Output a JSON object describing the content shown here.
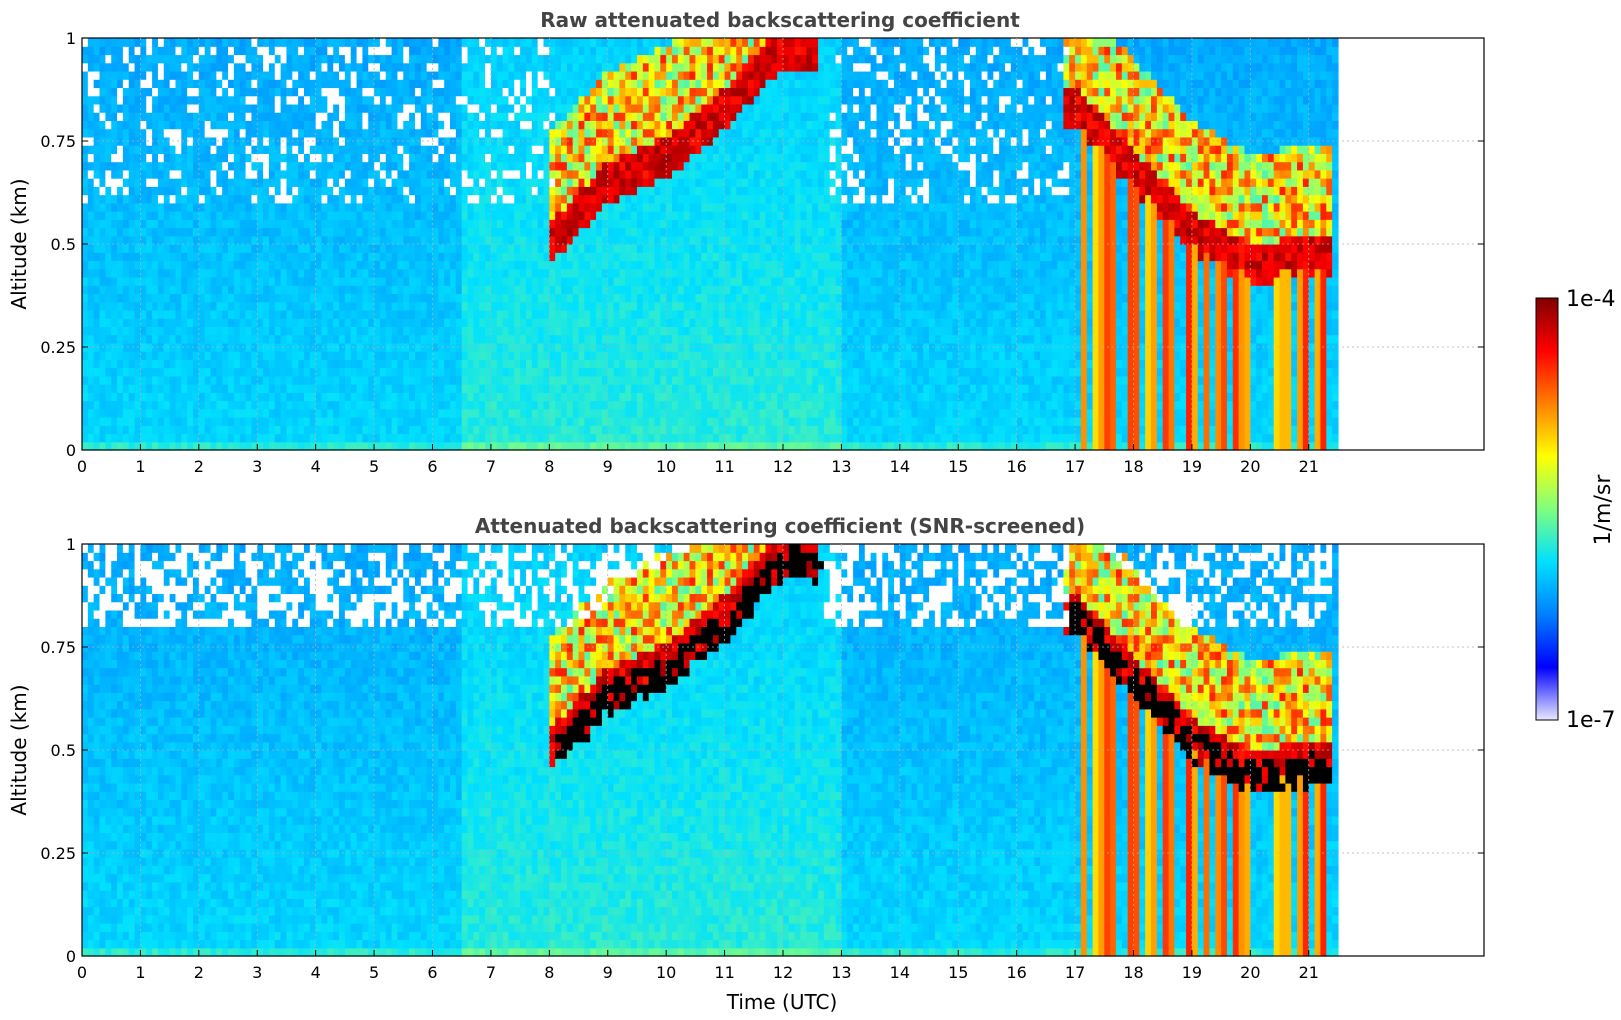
{
  "colors": {
    "panel_bg": "#ffffff",
    "grid": "#b0b0b0",
    "title": "#444444",
    "colormap": [
      "#e8e8ff",
      "#0000ff",
      "#0080ff",
      "#00e0ff",
      "#7fff7f",
      "#ffff00",
      "#ff8000",
      "#ff0000",
      "#800000"
    ]
  },
  "colorbar": {
    "label": "1/m/sr",
    "max_label": "1e-4",
    "min_label": "1e-7",
    "scale": "log",
    "range": [
      1e-07,
      0.0001
    ]
  },
  "xaxis_label": "Time (UTC)",
  "chart_data": [
    {
      "type": "heatmap",
      "title": "Raw attenuated backscattering coefficient",
      "ylabel": "Altitude (km)",
      "xlabel": "",
      "xlim": [
        0,
        24
      ],
      "ylim": [
        0,
        1
      ],
      "x_ticks": [
        0,
        1,
        2,
        3,
        4,
        5,
        6,
        7,
        8,
        9,
        10,
        11,
        12,
        13,
        14,
        15,
        16,
        17,
        18,
        19,
        20,
        21
      ],
      "y_ticks": [
        {
          "value": 0,
          "label": "0"
        },
        {
          "value": 0.25,
          "label": "0.25"
        },
        {
          "value": 0.5,
          "label": "0.5"
        },
        {
          "value": 0.75,
          "label": "0.75"
        },
        {
          "value": 1,
          "label": "1"
        }
      ],
      "grid": true,
      "data_end_hour": 21.45,
      "cloud_layer_base_km": [
        {
          "t": 8.0,
          "km": 0.47
        },
        {
          "t": 9.0,
          "km": 0.62
        },
        {
          "t": 10.0,
          "km": 0.68
        },
        {
          "t": 11.0,
          "km": 0.8
        },
        {
          "t": 12.0,
          "km": 0.95
        },
        {
          "t": 17.0,
          "km": 0.8
        },
        {
          "t": 18.0,
          "km": 0.65
        },
        {
          "t": 19.0,
          "km": 0.5
        },
        {
          "t": 20.0,
          "km": 0.42
        },
        {
          "t": 21.4,
          "km": 0.45
        }
      ],
      "screened": false
    },
    {
      "type": "heatmap",
      "title": "Attenuated backscattering coefficient (SNR-screened)",
      "ylabel": "Altitude (km)",
      "xlabel": "Time (UTC)",
      "xlim": [
        0,
        24
      ],
      "ylim": [
        0,
        1
      ],
      "x_ticks": [
        0,
        1,
        2,
        3,
        4,
        5,
        6,
        7,
        8,
        9,
        10,
        11,
        12,
        13,
        14,
        15,
        16,
        17,
        18,
        19,
        20,
        21
      ],
      "y_ticks": [
        {
          "value": 0,
          "label": "0"
        },
        {
          "value": 0.25,
          "label": "0.25"
        },
        {
          "value": 0.5,
          "label": "0.5"
        },
        {
          "value": 0.75,
          "label": "0.75"
        },
        {
          "value": 1,
          "label": "1"
        }
      ],
      "grid": true,
      "data_end_hour": 21.45,
      "cloud_layer_base_km": [
        {
          "t": 8.0,
          "km": 0.47
        },
        {
          "t": 9.0,
          "km": 0.62
        },
        {
          "t": 10.0,
          "km": 0.68
        },
        {
          "t": 11.0,
          "km": 0.8
        },
        {
          "t": 12.0,
          "km": 0.95
        },
        {
          "t": 17.0,
          "km": 0.8
        },
        {
          "t": 18.0,
          "km": 0.65
        },
        {
          "t": 19.0,
          "km": 0.5
        },
        {
          "t": 20.0,
          "km": 0.42
        },
        {
          "t": 21.4,
          "km": 0.45
        }
      ],
      "screened": true
    }
  ]
}
